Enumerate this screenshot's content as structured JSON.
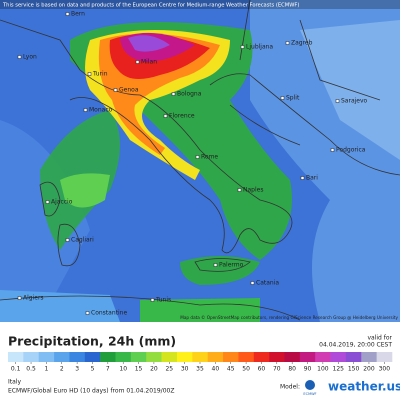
{
  "header": {
    "notice": "This service is based on data and products of the European Centre for Medium-range Weather Forecasts (ECMWF)"
  },
  "map": {
    "cities": [
      "Lyon",
      "Bern",
      "Milan",
      "Turin",
      "Genoa",
      "Monaco",
      "Bologna",
      "Florence",
      "Ljubljana",
      "Zagreb",
      "Split",
      "Sarajevo",
      "Podgorica",
      "Rome",
      "Naples",
      "Bari",
      "Ajaccio",
      "Cagliari",
      "Palermo",
      "Catania",
      "Algiers",
      "Constantine",
      "Tunis"
    ],
    "attribution": "Map data © OpenStreetMap contributors, rendering GIScience Research Group @ Heidelberg University"
  },
  "legend": {
    "title": "Precipitation, 24h (mm)",
    "valid_label": "valid for",
    "valid_time": "04.04.2019, 20:00 CEST",
    "ticks": [
      0.1,
      0.5,
      1,
      2,
      3,
      5,
      7,
      10,
      15,
      20,
      25,
      30,
      35,
      40,
      45,
      50,
      60,
      70,
      80,
      90,
      100,
      125,
      150,
      200,
      300
    ],
    "colors": [
      "#c8e6fb",
      "#a6d3f7",
      "#7fbdf2",
      "#5aa4ec",
      "#3b86e0",
      "#2a66cf",
      "#1f9e3b",
      "#39b84a",
      "#5fcf52",
      "#94dd3f",
      "#d4e51f",
      "#fff01a",
      "#ffd21a",
      "#ffae1a",
      "#ff8719",
      "#ff5a1a",
      "#ee2a1e",
      "#d0102c",
      "#b80a45",
      "#c21a80",
      "#d23cb2",
      "#b04ad8",
      "#8a4ed4",
      "#a0a0c8",
      "#d8d8e8"
    ]
  },
  "footer": {
    "region": "Italy",
    "model_run": "ECMWF/Global Euro HD (10 days) from 01.04.2019/00Z",
    "model_label": "Model:",
    "provider": "ECMWF",
    "brand": "weather.us"
  }
}
